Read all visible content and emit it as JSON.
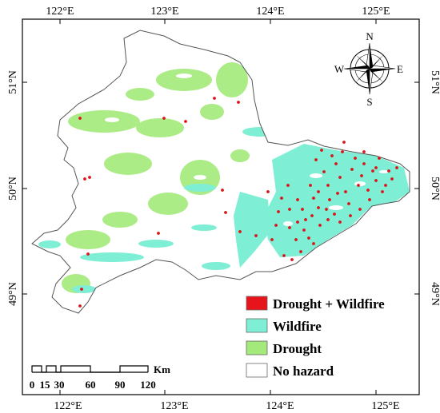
{
  "map": {
    "lon_ticks": [
      "122°E",
      "123°E",
      "124°E",
      "125°E"
    ],
    "lat_ticks": [
      "51°N",
      "50°N",
      "49°N"
    ],
    "legend": [
      {
        "label": "Drought + Wildfire",
        "color": "#e8141b"
      },
      {
        "label": "Wildfire",
        "color": "#7eeed4"
      },
      {
        "label": "Drought",
        "color": "#a3ea7a"
      },
      {
        "label": "No hazard",
        "color": "#ffffff"
      }
    ],
    "scale_bar": {
      "unit": "Km",
      "labels": [
        "0",
        "15",
        "30",
        "60",
        "90",
        "120"
      ]
    },
    "compass": {
      "n": "N",
      "s": "S",
      "e": "E",
      "w": "W"
    },
    "colors": {
      "region_fill": "#ffffff",
      "border": "#555555",
      "point": "#d9141b"
    }
  }
}
